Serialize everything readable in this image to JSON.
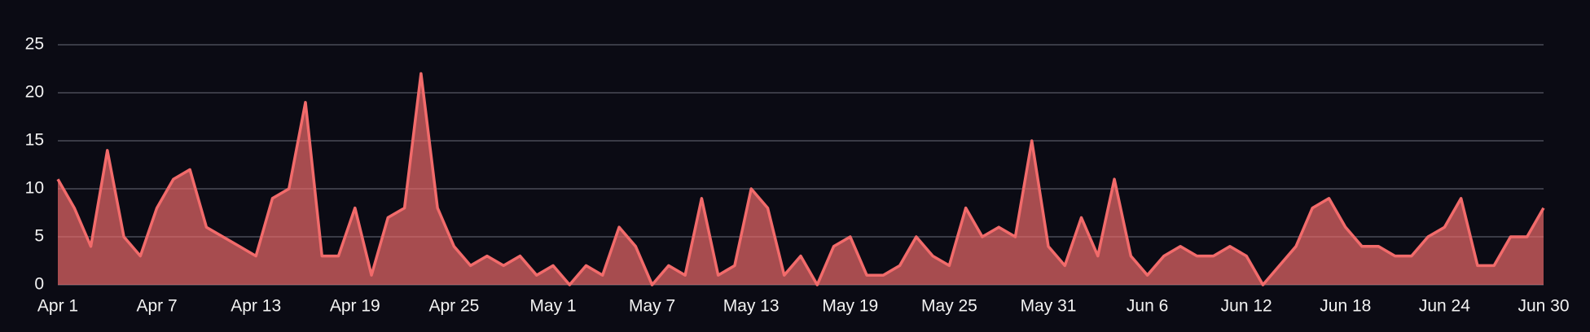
{
  "chart_data": {
    "type": "area",
    "categories": [
      "Apr 1",
      null,
      null,
      null,
      null,
      null,
      "Apr 7",
      null,
      null,
      null,
      null,
      null,
      "Apr 13",
      null,
      null,
      null,
      null,
      null,
      "Apr 19",
      null,
      null,
      null,
      null,
      null,
      "Apr 25",
      null,
      null,
      null,
      null,
      null,
      "May 1",
      null,
      null,
      null,
      null,
      null,
      "May 7",
      null,
      null,
      null,
      null,
      null,
      "May 13",
      null,
      null,
      null,
      null,
      null,
      "May 19",
      null,
      null,
      null,
      null,
      null,
      "May 25",
      null,
      null,
      null,
      null,
      null,
      "May 31",
      null,
      null,
      null,
      null,
      null,
      "Jun 6",
      null,
      null,
      null,
      null,
      null,
      "Jun 12",
      null,
      null,
      null,
      null,
      null,
      "Jun 18",
      null,
      null,
      null,
      null,
      null,
      "Jun 24",
      null,
      null,
      null,
      null,
      null,
      "Jun 30"
    ],
    "values": [
      11,
      8,
      4,
      14,
      5,
      3,
      8,
      11,
      12,
      6,
      5,
      4,
      3,
      9,
      10,
      19,
      3,
      3,
      8,
      1,
      7,
      8,
      22,
      8,
      4,
      2,
      3,
      2,
      3,
      1,
      2,
      0,
      2,
      1,
      6,
      4,
      0,
      2,
      1,
      9,
      1,
      2,
      10,
      8,
      1,
      3,
      0,
      4,
      5,
      1,
      1,
      2,
      5,
      3,
      2,
      8,
      5,
      6,
      5,
      15,
      4,
      2,
      7,
      3,
      11,
      3,
      1,
      3,
      4,
      3,
      3,
      4,
      3,
      0,
      2,
      4,
      8,
      9,
      6,
      4,
      4,
      3,
      3,
      5,
      6,
      9,
      2,
      2,
      5,
      5,
      8
    ],
    "color": "#f26b6b",
    "ylim": [
      0,
      25
    ],
    "yticks": [
      0,
      5,
      10,
      15,
      20,
      25
    ],
    "grid": true
  }
}
